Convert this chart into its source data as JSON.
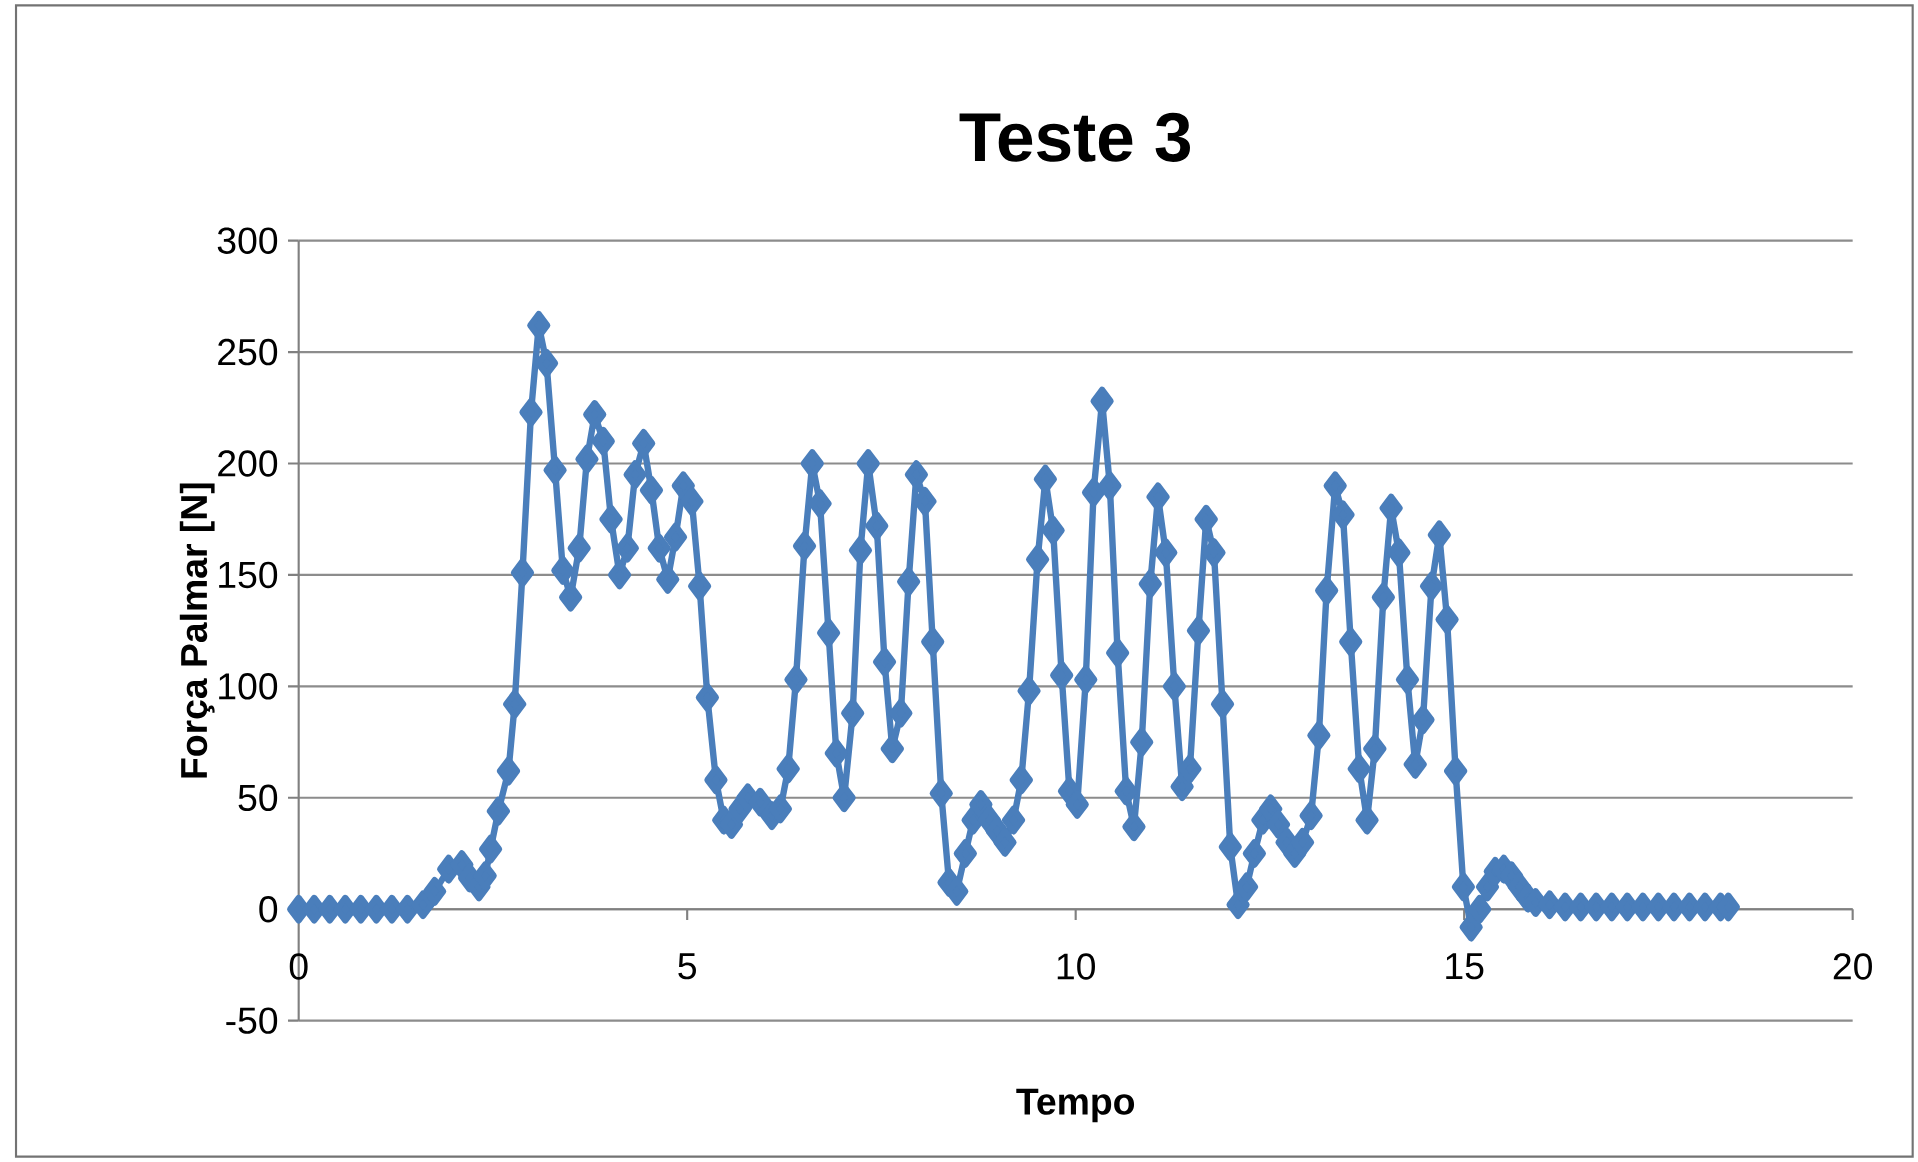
{
  "chart_data": {
    "type": "line",
    "title": "Teste 3",
    "xlabel": "Tempo",
    "ylabel": "Força Palmar [N]",
    "xlim": [
      0,
      20
    ],
    "xticks": [
      0,
      5,
      10,
      15,
      20
    ],
    "ylim": [
      -50,
      300
    ],
    "yticks": [
      -50,
      0,
      50,
      100,
      150,
      200,
      250,
      300
    ],
    "grid": "y",
    "marker": "diamond",
    "line_style": "solid",
    "series": [
      {
        "color": "#4a7ebb",
        "x": [
          0,
          0.2,
          0.4,
          0.6,
          0.8,
          1.0,
          1.2,
          1.4,
          1.6,
          1.75,
          1.93,
          2.1,
          2.2,
          2.32,
          2.4,
          2.47,
          2.57,
          2.7,
          2.78,
          2.88,
          2.99,
          3.09,
          3.19,
          3.3,
          3.4,
          3.5,
          3.61,
          3.71,
          3.81,
          3.92,
          4.02,
          4.13,
          4.23,
          4.33,
          4.44,
          4.54,
          4.64,
          4.75,
          4.85,
          4.95,
          5.06,
          5.16,
          5.26,
          5.37,
          5.47,
          5.57,
          5.68,
          5.78,
          5.94,
          6.09,
          6.2,
          6.3,
          6.4,
          6.51,
          6.61,
          6.71,
          6.82,
          6.92,
          7.02,
          7.13,
          7.23,
          7.33,
          7.44,
          7.54,
          7.64,
          7.75,
          7.85,
          7.95,
          8.06,
          8.16,
          8.27,
          8.37,
          8.47,
          8.58,
          8.68,
          8.78,
          8.89,
          8.99,
          9.09,
          9.2,
          9.3,
          9.4,
          9.51,
          9.61,
          9.71,
          9.82,
          9.92,
          10.02,
          10.13,
          10.23,
          10.34,
          10.44,
          10.54,
          10.65,
          10.75,
          10.85,
          10.96,
          11.06,
          11.16,
          11.27,
          11.37,
          11.47,
          11.58,
          11.68,
          11.78,
          11.89,
          11.99,
          12.09,
          12.2,
          12.3,
          12.41,
          12.51,
          12.61,
          12.72,
          12.82,
          12.92,
          13.03,
          13.13,
          13.23,
          13.34,
          13.44,
          13.54,
          13.65,
          13.75,
          13.85,
          13.96,
          14.06,
          14.16,
          14.27,
          14.37,
          14.47,
          14.58,
          14.68,
          14.78,
          14.89,
          14.99,
          15.09,
          15.2,
          15.3,
          15.4,
          15.51,
          15.61,
          15.71,
          15.82,
          15.92,
          16.1,
          16.3,
          16.5,
          16.7,
          16.9,
          17.1,
          17.3,
          17.5,
          17.7,
          17.9,
          18.1,
          18.3,
          18.4
        ],
        "values": [
          0,
          0,
          0,
          0,
          0,
          0,
          0,
          0,
          2,
          8,
          18,
          20,
          14,
          10,
          15,
          27,
          44,
          62,
          92,
          151,
          223,
          262,
          245,
          197,
          152,
          140,
          162,
          202,
          222,
          210,
          175,
          150,
          162,
          195,
          209,
          188,
          162,
          148,
          167,
          190,
          183,
          145,
          95,
          58,
          40,
          38,
          45,
          50,
          48,
          42,
          45,
          63,
          103,
          163,
          200,
          182,
          124,
          70,
          50,
          88,
          161,
          200,
          172,
          111,
          72,
          88,
          147,
          195,
          183,
          120,
          52,
          12,
          8,
          25,
          40,
          47,
          40,
          35,
          30,
          40,
          58,
          98,
          157,
          193,
          170,
          105,
          53,
          47,
          103,
          187,
          228,
          190,
          115,
          53,
          37,
          75,
          146,
          185,
          160,
          100,
          55,
          63,
          125,
          175,
          160,
          92,
          28,
          2,
          10,
          25,
          40,
          45,
          38,
          30,
          25,
          30,
          42,
          78,
          143,
          190,
          177,
          120,
          63,
          40,
          72,
          140,
          180,
          160,
          103,
          65,
          85,
          145,
          168,
          130,
          62,
          10,
          -8,
          0,
          10,
          17,
          18,
          15,
          10,
          5,
          3,
          2,
          1,
          1,
          1,
          1,
          1,
          1,
          1,
          1,
          1,
          1,
          1,
          1
        ]
      }
    ]
  }
}
